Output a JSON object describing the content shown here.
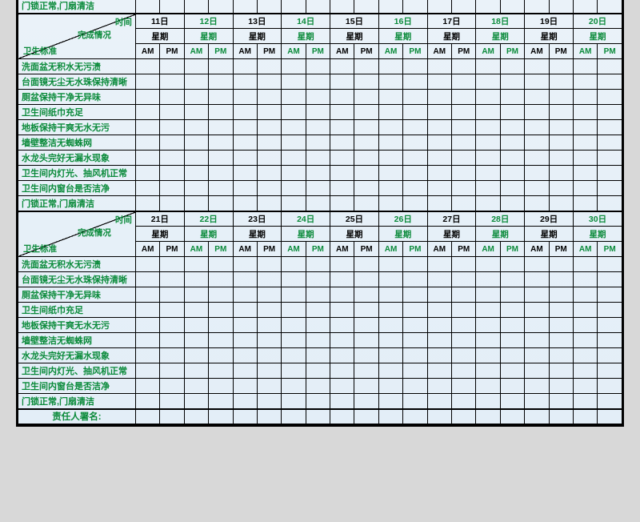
{
  "headers": {
    "time_label": "时间",
    "completion_label": "完成情况",
    "hygiene_label": "卫生标准",
    "week_label": "星期",
    "am": "AM",
    "pm": "PM",
    "day_suffix": "日"
  },
  "criteria": [
    "洗面盆无积水无污渍",
    "台面镜无尘无水珠保持清晰",
    "厕盆保持干净无异味",
    "卫生间纸巾充足",
    "地板保持干爽无水无污",
    "墙壁整洁无蜘蛛网",
    "水龙头完好无漏水现象",
    "卫生间内灯光、抽风机正常",
    "卫生间内窗台是否洁净",
    "门锁正常,门扇清洁"
  ],
  "section0_last_row": "门锁正常,门扇清洁",
  "sections": [
    {
      "days": [
        11,
        12,
        13,
        14,
        15,
        16,
        17,
        18,
        19,
        20
      ]
    },
    {
      "days": [
        21,
        22,
        23,
        24,
        25,
        26,
        27,
        28,
        29,
        30
      ]
    }
  ],
  "signature_label": "责任人署名:",
  "colors": {
    "green": "#0a8a3a",
    "black": "#000000",
    "bg_top": "#eaf2f9"
  }
}
